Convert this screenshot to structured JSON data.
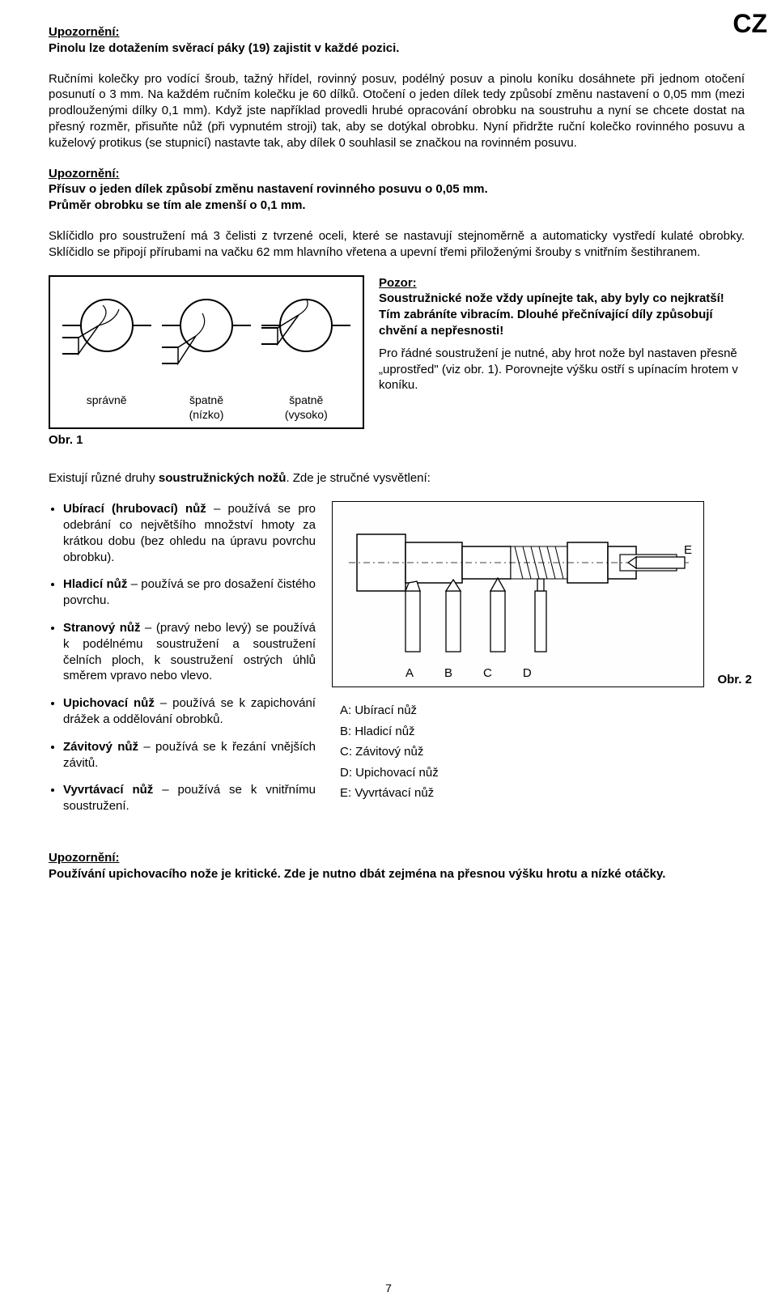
{
  "corner": "CZ",
  "notice1": {
    "head": "Upozornění:",
    "body": "Pinolu lze dotažením svěrací páky (19) zajistit v každé pozici."
  },
  "para1": "Ručními kolečky pro vodící šroub, tažný hřídel, rovinný posuv, podélný posuv a pinolu koníku dosáhnete při jednom otočení posunutí o 3 mm. Na každém ručním kolečku je 60 dílků. Otočení o jeden dílek tedy způsobí změnu nastavení o 0,05 mm (mezi prodlouženými dílky 0,1 mm). Když jste například provedli hrubé opracování obrobku na soustruhu a nyní se chcete dostat na přesný rozměr, přisuňte nůž (při vypnutém stroji) tak, aby se dotýkal obrobku. Nyní přidržte ruční kolečko rovinného posuvu a kuželový protikus (se stupnicí) nastavte tak, aby dílek 0 souhlasil se značkou na rovinném posuvu.",
  "notice2": {
    "head": "Upozornění:",
    "line1": "Přísuv o jeden dílek způsobí změnu nastavení rovinného posuvu o 0,05 mm.",
    "line2": "Průměr obrobku se tím ale zmenší o 0,1 mm."
  },
  "para2": "Sklíčidlo pro soustružení má 3 čelisti z tvrzené oceli, které se nastavují stejnoměrně a automaticky vystředí kulaté obrobky. Sklíčidlo se připojí přírubami na vačku 62 mm hlavního vřetena a upevní třemi přiloženými šrouby s vnitřním šestihranem.",
  "fig1": {
    "label": "Obr. 1",
    "cap1": "správně",
    "cap2a": "špatně",
    "cap2b": "(nízko)",
    "cap3a": "špatně",
    "cap3b": "(vysoko)"
  },
  "pozor": {
    "head": "Pozor:",
    "l1": "Soustružnické nože vždy upínejte tak, aby byly co nejkratší! Tím zabráníte vibracím. Dlouhé přečnívající díly způsobují chvění a nepřesnosti!",
    "l2": "Pro řádné soustružení je nutné, aby hrot nože byl nastaven přesně „uprostřed\" (viz obr. 1). Porovnejte výšku ostří s upínacím hrotem v koníku."
  },
  "intro_tools": "Existují různé druhy soustružnických nožů. Zde je stručné vysvětlení:",
  "intro_tools_bold": "soustružnických nožů",
  "tools": [
    {
      "name": "Ubírací (hrubovací) nůž",
      "desc": " – používá se pro odebrání co největšího množství hmoty za krátkou dobu (bez ohledu na úpravu povrchu obrobku)."
    },
    {
      "name": "Hladicí nůž",
      "desc": " – používá se pro dosažení čistého povrchu."
    },
    {
      "name": "Stranový nůž",
      "desc": " – (pravý nebo levý) se používá k podélnému soustružení a soustružení čelních ploch, k soustružení ostrých úhlů směrem vpravo nebo vlevo."
    },
    {
      "name": "Upichovací nůž",
      "desc": " – používá se k zapichování drážek a oddělování obrobků."
    },
    {
      "name": "Závitový nůž",
      "desc": " – používá se k řezání vnějších závitů."
    },
    {
      "name": "Vyvrtávací nůž",
      "desc": " – používá se k vnitřnímu soustružení."
    }
  ],
  "fig2": {
    "label": "Obr. 2",
    "letters": [
      "A",
      "B",
      "C",
      "D"
    ],
    "letterE": "E"
  },
  "legend": [
    "A: Ubírací nůž",
    "B: Hladicí nůž",
    "C: Závitový nůž",
    "D: Upichovací nůž",
    "E: Vyvrtávací nůž"
  ],
  "notice3": {
    "head": "Upozornění:",
    "body": "Používání upichovacího nože je kritické. Zde je nutno dbát zejména na přesnou výšku hrotu a nízké otáčky."
  },
  "page_num": "7",
  "colors": {
    "stroke": "#000000",
    "fill": "#ffffff",
    "hatch": "#444444"
  }
}
